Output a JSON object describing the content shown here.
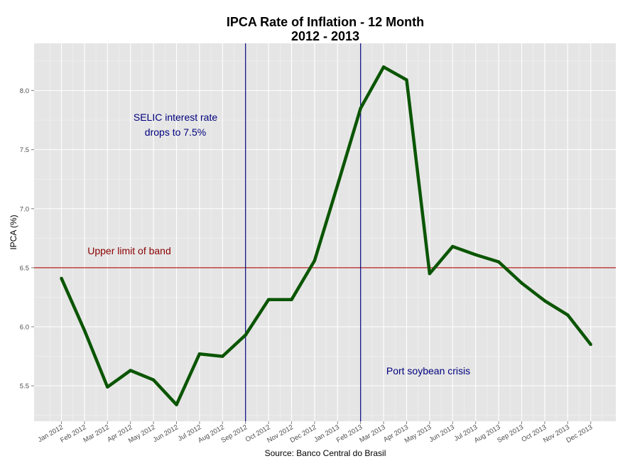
{
  "chart_data": {
    "type": "line",
    "title_line1": "IPCA Rate of Inflation - 12 Month",
    "title_line2": "2012 - 2013",
    "xlabel": "Source: Banco Central do Brasil",
    "ylabel": "IPCA (%)",
    "ylim": [
      5.2,
      8.4
    ],
    "yticks": [
      "5.5",
      "6.0",
      "6.5",
      "7.0",
      "7.5",
      "8.0"
    ],
    "grid": true,
    "categories": [
      "Jan 2012",
      "Feb 2012",
      "Mar 2012",
      "Apr 2012",
      "May 2012",
      "Jun 2012",
      "Jul 2012",
      "Aug 2012",
      "Sep 2012",
      "Oct 2012",
      "Nov 2012",
      "Dec 2012",
      "Jan 2013",
      "Feb 2013",
      "Mar 2013",
      "Apr 2013",
      "May 2013",
      "Jun 2013",
      "Jul 2013",
      "Aug 2013",
      "Sep 2013",
      "Oct 2013",
      "Nov 2013",
      "Dec 2013"
    ],
    "series": [
      {
        "values": [
          6.41,
          5.97,
          5.49,
          5.63,
          5.55,
          5.34,
          5.77,
          5.75,
          5.93,
          6.23,
          6.23,
          6.56,
          7.2,
          7.85,
          8.2,
          8.09,
          6.45,
          6.68,
          6.61,
          6.55,
          6.37,
          6.22,
          6.1,
          5.85
        ],
        "color": "#0a5500"
      }
    ],
    "hline": {
      "y": 6.5,
      "color": "#b22222",
      "label": "Upper limit of band"
    },
    "vlines": [
      {
        "x": "Sep 2012",
        "color": "#00007f",
        "label_line1": "SELIC interest rate",
        "label_line2": "drops to 7.5%"
      },
      {
        "x": "Feb 2013",
        "color": "#00007f",
        "label_line1": "Port soybean crisis",
        "label_line2": ""
      }
    ]
  }
}
